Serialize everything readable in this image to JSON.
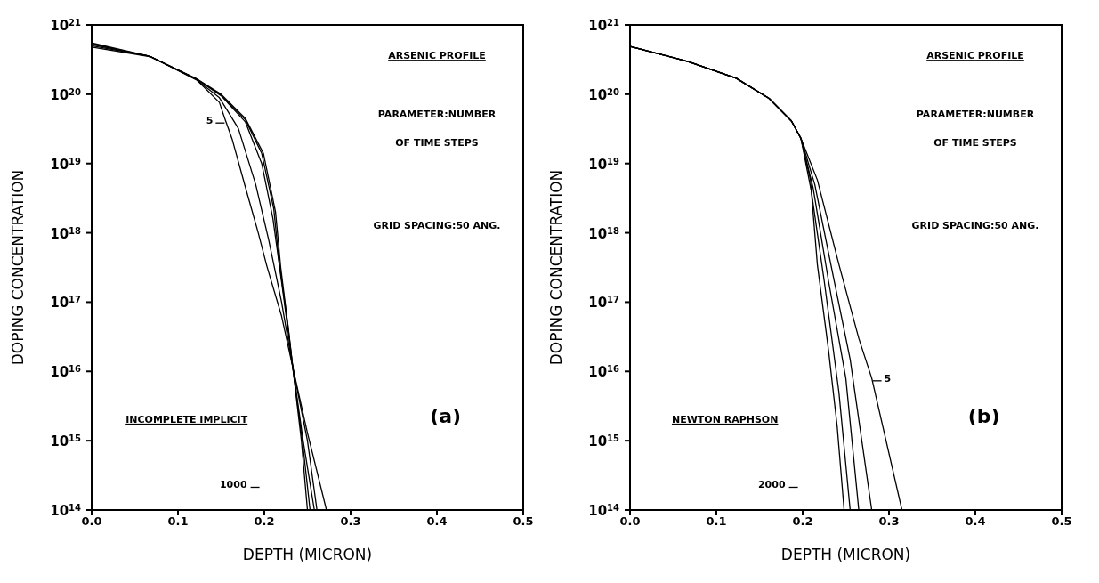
{
  "chart_data": [
    {
      "type": "line",
      "xlabel": "DEPTH (MICRON)",
      "ylabel": "DOPING CONCENTRATION",
      "log": "y",
      "grid": false,
      "legend": false,
      "marker": "none",
      "line_style": "solid",
      "xlim": [
        0,
        0.5
      ],
      "ylim": [
        100000000000000.0,
        1e+21
      ],
      "xticks": [
        {
          "value": 0,
          "label": "0.0"
        },
        {
          "value": 0.1,
          "label": "0.1"
        },
        {
          "value": 0.2,
          "label": "0.2"
        },
        {
          "value": 0.3,
          "label": "0.3"
        },
        {
          "value": 0.4,
          "label": "0.4"
        },
        {
          "value": 0.5,
          "label": "0.5"
        }
      ],
      "yticks": [
        {
          "value": 100000000000000.0,
          "label": "10$^{14}$"
        },
        {
          "value": 1000000000000000.0,
          "label": "10$^{15}$"
        },
        {
          "value": 1e+16,
          "label": "10$^{16}$"
        },
        {
          "value": 1e+17,
          "label": "10$^{17}$"
        },
        {
          "value": 1e+18,
          "label": "10$^{18}$"
        },
        {
          "value": 1e+19,
          "label": "10$^{19}$"
        },
        {
          "value": 1e+20,
          "label": "10$^{20}$"
        },
        {
          "value": 1e+21,
          "label": "10$^{21}$"
        }
      ],
      "series": [
        {
          "color": "#000000",
          "x": [
            0,
            0.067,
            0.122,
            0.148,
            0.155,
            0.163,
            0.178,
            0.193,
            0.203,
            0.22,
            0.233,
            0.25,
            0.272
          ],
          "values": [
            5.25e+20,
            3.55e+20,
            1.6e+20,
            7.6e+19,
            4.2e+19,
            2.2e+19,
            4.6e+18,
            1e+18,
            3.3e+17,
            6.3e+16,
            1.15e+16,
            1300000000000000.0,
            100000000000000.0
          ]
        },
        {
          "color": "#000000",
          "x": [
            0,
            0.067,
            0.122,
            0.148,
            0.17,
            0.19,
            0.205,
            0.22,
            0.233,
            0.25,
            0.261
          ],
          "values": [
            5e+20,
            3.55e+20,
            1.6e+20,
            8.9e+19,
            3.2e+19,
            5e+18,
            8e+17,
            1e+17,
            1.15e+16,
            1000000000000000.0,
            100000000000000.0
          ]
        },
        {
          "color": "#000000",
          "x": [
            0,
            0.067,
            0.122,
            0.15,
            0.178,
            0.197,
            0.21,
            0.222,
            0.233,
            0.245,
            0.258
          ],
          "values": [
            4.8e+20,
            3.5e+20,
            1.65e+20,
            9.5e+19,
            4e+19,
            1e+19,
            1.6e+18,
            1.3e+17,
            1.15e+16,
            1000000000000000.0,
            100000000000000.0
          ]
        },
        {
          "color": "#000000",
          "x": [
            0,
            0.067,
            0.122,
            0.15,
            0.178,
            0.197,
            0.211,
            0.217,
            0.227,
            0.233,
            0.245,
            0.253
          ],
          "values": [
            5.5e+20,
            3.55e+20,
            1.65e+20,
            9.7e+19,
            4.3e+19,
            1.4e+19,
            2.2e+18,
            4e+17,
            5e+16,
            1.15e+16,
            800000000000000.0,
            100000000000000.0
          ]
        },
        {
          "color": "#000000",
          "x": [
            0,
            0.067,
            0.122,
            0.15,
            0.178,
            0.199,
            0.213,
            0.219,
            0.228,
            0.233,
            0.243,
            0.25
          ],
          "values": [
            5.3e+20,
            3.55e+20,
            1.65e+20,
            1e+20,
            4.5e+19,
            1.4e+19,
            2e+18,
            3.2e+17,
            4e+16,
            1.15e+16,
            1000000000000000.0,
            100000000000000.0
          ]
        }
      ],
      "annotations": [
        "ARSENIC PROFILE",
        "PARAMETER:NUMBER",
        "OF TIME STEPS",
        "GRID SPACING:50 ANG.",
        "INCOMPLETE IMPLICIT",
        "(a)",
        "1000",
        {
          "text": "5",
          "x": 0.155,
          "y": 4.2e+19
        }
      ]
    },
    {
      "type": "line",
      "xlabel": "DEPTH (MICRON)",
      "ylabel": "DOPING CONCENTRATION",
      "log": "y",
      "grid": false,
      "legend": false,
      "marker": "none",
      "line_style": "solid",
      "xlim": [
        0,
        0.5
      ],
      "ylim": [
        100000000000000.0,
        1e+21
      ],
      "xticks": [
        {
          "value": 0,
          "label": "0.0"
        },
        {
          "value": 0.1,
          "label": "0.1"
        },
        {
          "value": 0.2,
          "label": "0.2"
        },
        {
          "value": 0.3,
          "label": "0.3"
        },
        {
          "value": 0.4,
          "label": "0.4"
        },
        {
          "value": 0.5,
          "label": "0.5"
        }
      ],
      "yticks": [
        {
          "value": 100000000000000.0,
          "label": "10$^{14}$"
        },
        {
          "value": 1000000000000000.0,
          "label": "10$^{15}$"
        },
        {
          "value": 1e+16,
          "label": "10$^{16}$"
        },
        {
          "value": 1e+17,
          "label": "10$^{17}$"
        },
        {
          "value": 1e+18,
          "label": "10$^{18}$"
        },
        {
          "value": 1e+19,
          "label": "10$^{19}$"
        },
        {
          "value": 1e+20,
          "label": "10$^{20}$"
        },
        {
          "value": 1e+21,
          "label": "10$^{21}$"
        }
      ],
      "series": [
        {
          "color": "#000000",
          "x": [
            0,
            0.068,
            0.123,
            0.161,
            0.187,
            0.198,
            0.217,
            0.242,
            0.265,
            0.28,
            0.315
          ],
          "values": [
            4.9e+20,
            2.95e+20,
            1.7e+20,
            8.7e+19,
            4.1e+19,
            2.3e+19,
            5.8e+18,
            3.5e+17,
            3e+16,
            8000000000000000.0,
            100000000000000.0
          ]
        },
        {
          "color": "#000000",
          "x": [
            0,
            0.068,
            0.123,
            0.161,
            0.187,
            0.198,
            0.214,
            0.235,
            0.255,
            0.28
          ],
          "values": [
            4.9e+20,
            2.95e+20,
            1.7e+20,
            8.7e+19,
            4.1e+19,
            2.3e+19,
            5e+18,
            2.5e+17,
            1.5e+16,
            100000000000000.0
          ]
        },
        {
          "color": "#000000",
          "x": [
            0,
            0.068,
            0.123,
            0.161,
            0.187,
            0.198,
            0.212,
            0.23,
            0.25,
            0.265
          ],
          "values": [
            4.9e+20,
            2.95e+20,
            1.7e+20,
            8.7e+19,
            4.1e+19,
            2.3e+19,
            4.5e+18,
            2e+17,
            8000000000000000.0,
            100000000000000.0
          ]
        },
        {
          "color": "#000000",
          "x": [
            0,
            0.068,
            0.123,
            0.161,
            0.187,
            0.198,
            0.21,
            0.225,
            0.242,
            0.255
          ],
          "values": [
            4.9e+20,
            2.95e+20,
            1.7e+20,
            8.7e+19,
            4.1e+19,
            2.3e+19,
            4e+18,
            2e+17,
            5000000000000000.0,
            100000000000000.0
          ]
        },
        {
          "color": "#000000",
          "x": [
            0,
            0.068,
            0.123,
            0.161,
            0.187,
            0.198,
            0.209,
            0.217,
            0.23,
            0.24,
            0.248
          ],
          "values": [
            4.9e+20,
            2.95e+20,
            1.7e+20,
            8.7e+19,
            4.1e+19,
            2.3e+19,
            5.8e+18,
            3.5e+17,
            2e+16,
            1600000000000000.0,
            100000000000000.0
          ]
        }
      ],
      "annotations": [
        "ARSENIC PROFILE",
        "PARAMETER:NUMBER",
        "OF TIME STEPS",
        "GRID SPACING:50 ANG.",
        "NEWTON RAPHSON",
        "(b)",
        "2000",
        {
          "text": "5",
          "x": 0.28,
          "y": 8000000000000000.0
        }
      ]
    }
  ]
}
